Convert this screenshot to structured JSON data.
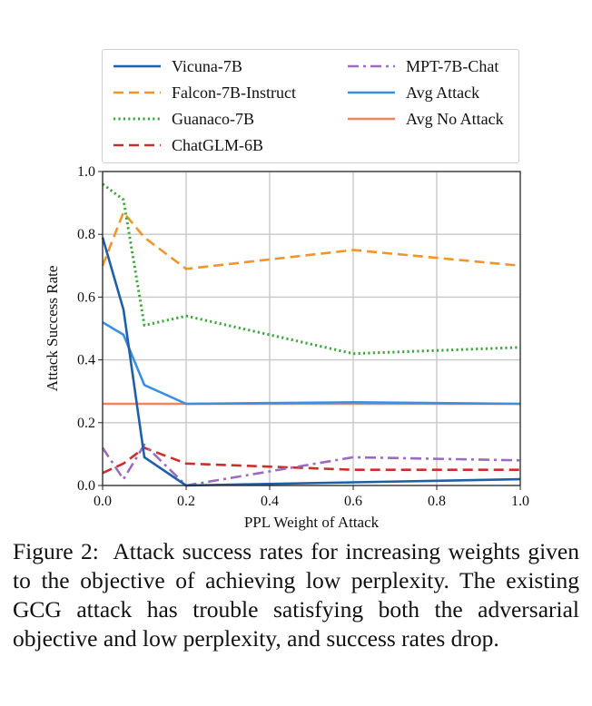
{
  "chart_data": {
    "type": "line",
    "xlabel": "PPL Weight of Attack",
    "ylabel": "Attack Success Rate",
    "xlim": [
      0,
      1
    ],
    "ylim": [
      0,
      1
    ],
    "xticks": [
      "0.0",
      "0.2",
      "0.4",
      "0.6",
      "0.8",
      "1.0"
    ],
    "yticks": [
      "0.0",
      "0.2",
      "0.4",
      "0.6",
      "0.8",
      "1.0"
    ],
    "grid": true,
    "legend_placement": "top",
    "series": [
      {
        "name": "Vicuna-7B",
        "color": "#1f5fa8",
        "dash": "solid",
        "x": [
          0.0,
          0.05,
          0.1,
          0.2,
          0.6,
          1.0
        ],
        "y": [
          0.79,
          0.56,
          0.09,
          0.0,
          0.01,
          0.02
        ]
      },
      {
        "name": "Falcon-7B-Instruct",
        "color": "#f0952a",
        "dash": "dashed",
        "x": [
          0.0,
          0.05,
          0.1,
          0.2,
          0.6,
          1.0
        ],
        "y": [
          0.7,
          0.87,
          0.79,
          0.69,
          0.75,
          0.7
        ]
      },
      {
        "name": "Guanaco-7B",
        "color": "#3ea83e",
        "dash": "dotted",
        "x": [
          0.0,
          0.05,
          0.1,
          0.2,
          0.6,
          1.0
        ],
        "y": [
          0.96,
          0.91,
          0.51,
          0.54,
          0.42,
          0.44
        ]
      },
      {
        "name": "ChatGLM-6B",
        "color": "#c9302c",
        "dash": "dashed",
        "x": [
          0.0,
          0.05,
          0.1,
          0.2,
          0.6,
          1.0
        ],
        "y": [
          0.04,
          0.07,
          0.12,
          0.07,
          0.05,
          0.05
        ]
      },
      {
        "name": "MPT-7B-Chat",
        "color": "#9b6bc2",
        "dash": "dashdot",
        "x": [
          0.0,
          0.05,
          0.1,
          0.2,
          0.6,
          1.0
        ],
        "y": [
          0.12,
          0.02,
          0.13,
          0.0,
          0.09,
          0.08
        ]
      },
      {
        "name": "Avg Attack",
        "color": "#3a8fe0",
        "dash": "solid",
        "x": [
          0.0,
          0.05,
          0.1,
          0.2,
          0.6,
          1.0
        ],
        "y": [
          0.52,
          0.48,
          0.32,
          0.26,
          0.265,
          0.26
        ]
      },
      {
        "name": "Avg No Attack",
        "color": "#f2845c",
        "dash": "solid",
        "x": [
          0.0,
          1.0
        ],
        "y": [
          0.26,
          0.26
        ]
      }
    ]
  },
  "caption": {
    "label": "Figure 2:",
    "text": "Attack success rates for increasing weights given to the objective of achieving low perplexity. The existing GCG attack has trouble satisfying both the adversarial objective and low perplexity, and success rates drop."
  }
}
